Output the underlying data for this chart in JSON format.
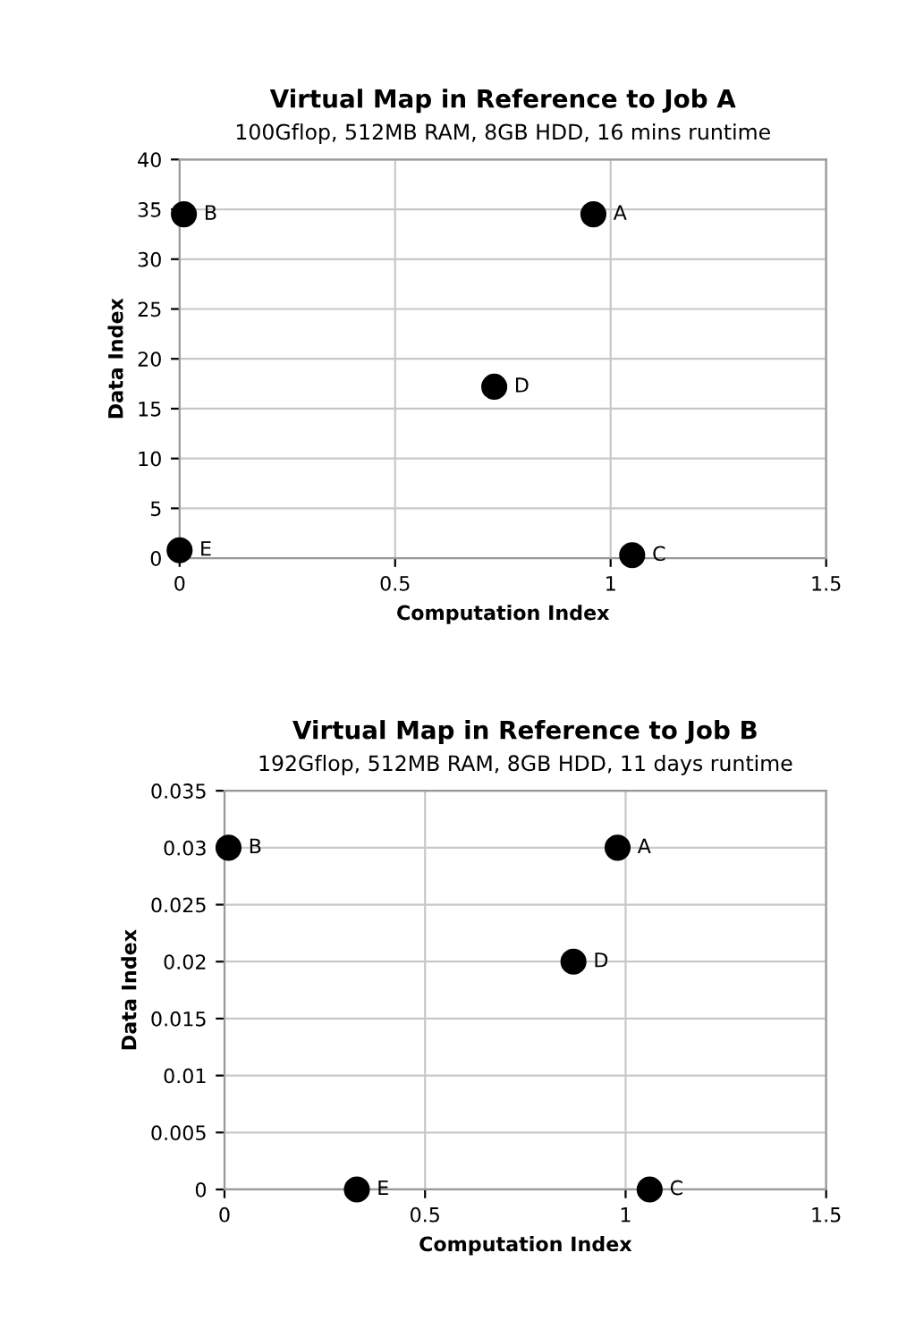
{
  "chart_data": [
    {
      "type": "scatter",
      "title": "Virtual Map in Reference to Job A",
      "subtitle": "100Gflop, 512MB RAM, 8GB HDD, 16 mins runtime",
      "xlabel": "Computation Index",
      "ylabel": "Data Index",
      "series": [
        {
          "color": "#000000",
          "x": [
            0.96,
            0.01,
            1.05,
            0.73,
            0.0
          ],
          "values": [
            34.5,
            34.5,
            0.3,
            17.2,
            0.8
          ]
        }
      ],
      "annotations": [
        {
          "text": "A",
          "x": 0.96,
          "y": 34.5
        },
        {
          "text": "B",
          "x": 0.01,
          "y": 34.5
        },
        {
          "text": "C",
          "x": 1.05,
          "y": 0.3
        },
        {
          "text": "D",
          "x": 0.73,
          "y": 17.2
        },
        {
          "text": "E",
          "x": 0.0,
          "y": 0.8
        }
      ],
      "xlim": [
        0,
        1.5
      ],
      "xticks": [
        0,
        0.5,
        1,
        1.5
      ],
      "ylim": [
        0,
        40
      ],
      "yticks": [
        0,
        5,
        10,
        15,
        20,
        25,
        30,
        35,
        40
      ],
      "grid": true,
      "marker": "circle"
    },
    {
      "type": "scatter",
      "title": "Virtual Map in Reference to Job B",
      "subtitle": "192Gflop, 512MB RAM, 8GB HDD, 11 days runtime",
      "xlabel": "Computation Index",
      "ylabel": "Data Index",
      "series": [
        {
          "color": "#000000",
          "x": [
            0.98,
            0.01,
            1.06,
            0.87,
            0.33
          ],
          "values": [
            0.03,
            0.03,
            0,
            0.02,
            0
          ]
        }
      ],
      "annotations": [
        {
          "text": "A",
          "x": 0.98,
          "y": 0.03
        },
        {
          "text": "B",
          "x": 0.01,
          "y": 0.03
        },
        {
          "text": "C",
          "x": 1.06,
          "y": 0
        },
        {
          "text": "D",
          "x": 0.87,
          "y": 0.02
        },
        {
          "text": "E",
          "x": 0.33,
          "y": 0
        }
      ],
      "xlim": [
        0,
        1.5
      ],
      "xticks": [
        0,
        0.5,
        1,
        1.5
      ],
      "ylim": [
        0,
        0.035
      ],
      "yticks": [
        0,
        0.005,
        0.01,
        0.015,
        0.02,
        0.025,
        0.03,
        0.035
      ],
      "grid": true,
      "marker": "circle"
    }
  ]
}
